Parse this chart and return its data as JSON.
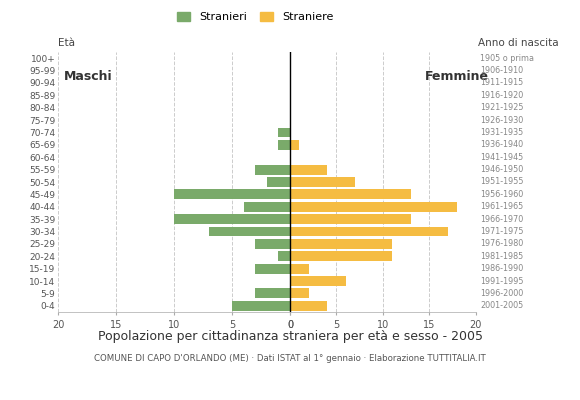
{
  "age_groups": [
    "0-4",
    "5-9",
    "10-14",
    "15-19",
    "20-24",
    "25-29",
    "30-34",
    "35-39",
    "40-44",
    "45-49",
    "50-54",
    "55-59",
    "60-64",
    "65-69",
    "70-74",
    "75-79",
    "80-84",
    "85-89",
    "90-94",
    "95-99",
    "100+"
  ],
  "birth_years": [
    "2001-2005",
    "1996-2000",
    "1991-1995",
    "1986-1990",
    "1981-1985",
    "1976-1980",
    "1971-1975",
    "1966-1970",
    "1961-1965",
    "1956-1960",
    "1951-1955",
    "1946-1950",
    "1941-1945",
    "1936-1940",
    "1931-1935",
    "1926-1930",
    "1921-1925",
    "1916-1920",
    "1911-1915",
    "1906-1910",
    "1905 o prima"
  ],
  "males": [
    5,
    3,
    0,
    3,
    1,
    3,
    7,
    10,
    4,
    10,
    2,
    3,
    0,
    1,
    1,
    0,
    0,
    0,
    0,
    0,
    0
  ],
  "females": [
    4,
    2,
    6,
    2,
    11,
    11,
    17,
    13,
    18,
    13,
    7,
    4,
    0,
    1,
    0,
    0,
    0,
    0,
    0,
    0,
    0
  ],
  "male_color": "#7aaa6a",
  "female_color": "#f5bc42",
  "title": "Popolazione per cittadinanza straniera per età e sesso - 2005",
  "subtitle": "COMUNE DI CAPO D'ORLANDO (ME) · Dati ISTAT al 1° gennaio · Elaborazione TUTTITALIA.IT",
  "xlabel_left": "Maschi",
  "xlabel_right": "Femmine",
  "ylabel": "Età",
  "ylabel_right": "Anno di nascita",
  "legend_male": "Stranieri",
  "legend_female": "Straniere",
  "xlim": 20,
  "background_color": "#ffffff",
  "grid_color": "#cccccc"
}
